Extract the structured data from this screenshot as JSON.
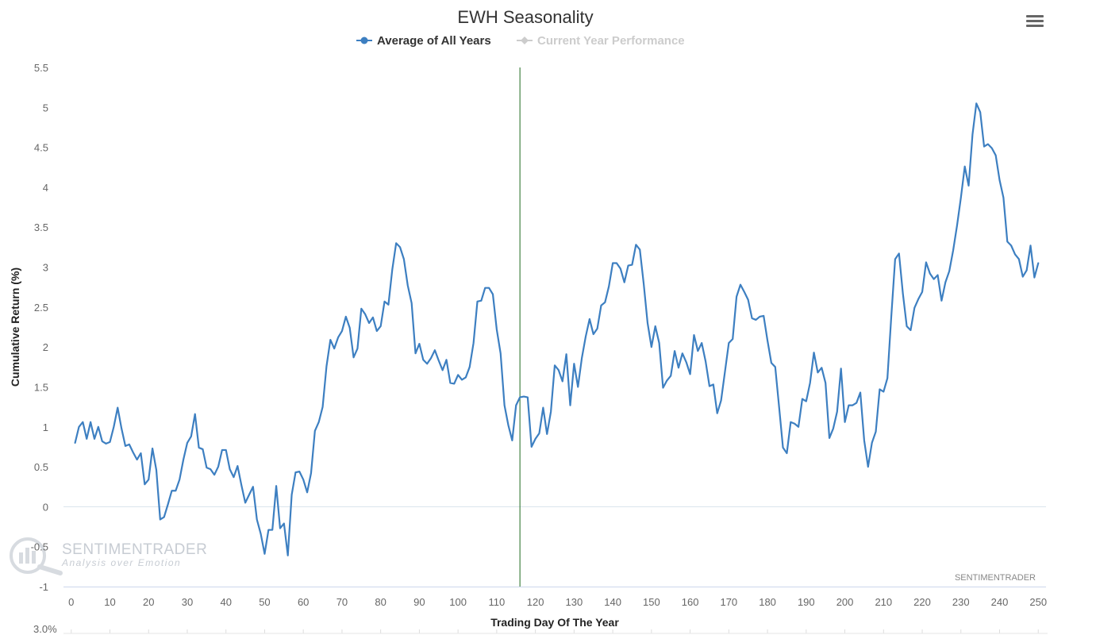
{
  "chart_data": {
    "type": "line",
    "title": "EWH Seasonality",
    "xlabel": "Trading Day Of The Year",
    "ylabel": "Cumulative Return (%)",
    "xlim": [
      -2,
      252
    ],
    "ylim": [
      -1,
      5.5
    ],
    "x_ticks": [
      0,
      10,
      20,
      30,
      40,
      50,
      60,
      70,
      80,
      90,
      100,
      110,
      120,
      130,
      140,
      150,
      160,
      170,
      180,
      190,
      200,
      210,
      220,
      230,
      240,
      250
    ],
    "y_ticks": [
      -1,
      -0.5,
      0,
      0.5,
      1,
      1.5,
      2,
      2.5,
      3,
      3.5,
      4,
      4.5,
      5,
      5.5
    ],
    "current_day_marker": 116,
    "legend_position": "top-center",
    "series": [
      {
        "name": "Average of All Years",
        "color": "#3d7fc1",
        "x_start": 1,
        "values": [
          0.8,
          1.0,
          1.06,
          0.85,
          1.06,
          0.85,
          1.0,
          0.82,
          0.79,
          0.81,
          1.0,
          1.24,
          0.98,
          0.76,
          0.78,
          0.68,
          0.59,
          0.67,
          0.28,
          0.34,
          0.73,
          0.46,
          -0.16,
          -0.13,
          0.03,
          0.2,
          0.2,
          0.34,
          0.59,
          0.8,
          0.88,
          1.16,
          0.74,
          0.72,
          0.49,
          0.47,
          0.4,
          0.5,
          0.71,
          0.71,
          0.47,
          0.37,
          0.51,
          0.27,
          0.05,
          0.15,
          0.25,
          -0.16,
          -0.34,
          -0.59,
          -0.29,
          -0.29,
          0.26,
          -0.27,
          -0.21,
          -0.61,
          0.15,
          0.43,
          0.44,
          0.34,
          0.18,
          0.42,
          0.95,
          1.06,
          1.25,
          1.76,
          2.09,
          1.98,
          2.12,
          2.2,
          2.38,
          2.24,
          1.87,
          1.98,
          2.48,
          2.41,
          2.3,
          2.37,
          2.2,
          2.26,
          2.57,
          2.53,
          2.97,
          3.3,
          3.25,
          3.1,
          2.77,
          2.55,
          1.92,
          2.04,
          1.84,
          1.79,
          1.86,
          1.96,
          1.83,
          1.71,
          1.84,
          1.55,
          1.54,
          1.65,
          1.59,
          1.62,
          1.75,
          2.05,
          2.57,
          2.58,
          2.74,
          2.74,
          2.66,
          2.22,
          1.92,
          1.27,
          1.02,
          0.83,
          1.27,
          1.37,
          1.38,
          1.37,
          0.75,
          0.85,
          0.92,
          1.24,
          0.91,
          1.19,
          1.77,
          1.71,
          1.57,
          1.91,
          1.27,
          1.79,
          1.5,
          1.86,
          2.13,
          2.35,
          2.16,
          2.23,
          2.52,
          2.56,
          2.76,
          3.05,
          3.05,
          2.98,
          2.81,
          3.02,
          3.03,
          3.28,
          3.22,
          2.79,
          2.3,
          2.0,
          2.26,
          2.05,
          1.49,
          1.58,
          1.64,
          1.95,
          1.74,
          1.92,
          1.81,
          1.66,
          2.15,
          1.95,
          2.05,
          1.82,
          1.51,
          1.53,
          1.17,
          1.33,
          1.69,
          2.05,
          2.1,
          2.63,
          2.78,
          2.69,
          2.59,
          2.36,
          2.34,
          2.38,
          2.39,
          2.08,
          1.8,
          1.75,
          1.25,
          0.74,
          0.67,
          1.06,
          1.04,
          1.0,
          1.35,
          1.32,
          1.55,
          1.93,
          1.68,
          1.74,
          1.55,
          0.86,
          0.98,
          1.19,
          1.73,
          1.06,
          1.27,
          1.27,
          1.3,
          1.43,
          0.83,
          0.5,
          0.8,
          0.94,
          1.47,
          1.44,
          1.61,
          2.38,
          3.1,
          3.17,
          2.67,
          2.26,
          2.21,
          2.49,
          2.6,
          2.69,
          3.06,
          2.92,
          2.85,
          2.9,
          2.58,
          2.81,
          2.95,
          3.21,
          3.52,
          3.87,
          4.26,
          4.02,
          4.66,
          5.05,
          4.94,
          4.51,
          4.54,
          4.49,
          4.4,
          4.09,
          3.87,
          3.32,
          3.27,
          3.16,
          3.1,
          2.88,
          2.96,
          3.27,
          2.87,
          3.05
        ]
      },
      {
        "name": "Current Year Performance",
        "color": "#cccccc",
        "values": []
      }
    ]
  },
  "watermark": {
    "brand": "SENTIMENTRADER",
    "tagline": "Analysis over Emotion"
  },
  "credits": "SENTIMENTRADER",
  "lower_axis_label": "3.0%",
  "menu_icon": "hamburger-menu-icon"
}
